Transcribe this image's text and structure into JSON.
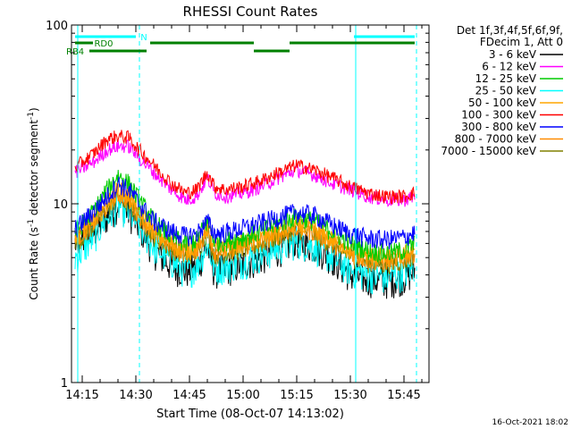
{
  "chart_data": {
    "type": "line",
    "title": "RHESSI Count Rates",
    "xlabel": "Start Time (08-Oct-07 14:13:02)",
    "ylabel_main": "Count Rate (s",
    "ylabel_sup": "-1",
    "ylabel_rest": " detector segment",
    "ylabel_sup2": "-1",
    "ylabel_end": ")",
    "y_scale": "log",
    "ylim": [
      1,
      100
    ],
    "y_ticks": [
      {
        "value": 1,
        "label": "1"
      },
      {
        "value": 10,
        "label": "10"
      },
      {
        "value": 100,
        "label": "100"
      }
    ],
    "xlim": [
      "14:12",
      "15:52"
    ],
    "x_ticks": [
      {
        "time": "14:15",
        "label": "14:15"
      },
      {
        "time": "14:30",
        "label": "14:30"
      },
      {
        "time": "14:45",
        "label": "14:45"
      },
      {
        "time": "15:00",
        "label": "15:00"
      },
      {
        "time": "15:15",
        "label": "15:15"
      },
      {
        "time": "15:30",
        "label": "15:30"
      },
      {
        "time": "15:45",
        "label": "15:45"
      }
    ],
    "legend_placement": "outside-right",
    "legend_header": [
      "Det 1f,3f,4f,5f,6f,9f,",
      "FDecim 1, Att 0"
    ],
    "series": [
      {
        "name": "3 - 6 keV",
        "color": "#000000",
        "baseline": 2.5,
        "points": [
          [
            "14:13",
            6.0
          ],
          [
            "14:18",
            6.8
          ],
          [
            "14:22",
            8.5
          ],
          [
            "14:25",
            10.0
          ],
          [
            "14:28",
            9.0
          ],
          [
            "14:31",
            7.5
          ],
          [
            "14:35",
            5.5
          ],
          [
            "14:40",
            4.5
          ],
          [
            "14:44",
            4.2
          ],
          [
            "14:47",
            4.4
          ],
          [
            "14:50",
            5.8
          ],
          [
            "14:52",
            4.2
          ],
          [
            "14:55",
            4.3
          ],
          [
            "15:00",
            4.6
          ],
          [
            "15:05",
            5.0
          ],
          [
            "15:10",
            5.6
          ],
          [
            "15:15",
            6.2
          ],
          [
            "15:20",
            5.8
          ],
          [
            "15:25",
            5.0
          ],
          [
            "15:30",
            4.0
          ],
          [
            "15:35",
            3.8
          ],
          [
            "15:40",
            3.7
          ],
          [
            "15:45",
            3.9
          ],
          [
            "15:48",
            4.2
          ]
        ]
      },
      {
        "name": "6 - 12 keV",
        "color": "#ff00ff",
        "baseline": 7.0,
        "points": [
          [
            "14:13",
            15.0
          ],
          [
            "14:18",
            17.0
          ],
          [
            "14:22",
            20.0
          ],
          [
            "14:25",
            21.0
          ],
          [
            "14:28",
            21.0
          ],
          [
            "14:31",
            18.0
          ],
          [
            "14:35",
            15.0
          ],
          [
            "14:40",
            12.0
          ],
          [
            "14:44",
            10.5
          ],
          [
            "14:47",
            11.0
          ],
          [
            "14:50",
            14.0
          ],
          [
            "14:52",
            11.5
          ],
          [
            "14:55",
            11.0
          ],
          [
            "15:00",
            11.5
          ],
          [
            "15:05",
            12.5
          ],
          [
            "15:10",
            14.0
          ],
          [
            "15:15",
            15.5
          ],
          [
            "15:20",
            14.5
          ],
          [
            "15:25",
            13.0
          ],
          [
            "15:30",
            12.0
          ],
          [
            "15:35",
            11.0
          ],
          [
            "15:40",
            10.5
          ],
          [
            "15:45",
            10.5
          ],
          [
            "15:48",
            11.0
          ]
        ]
      },
      {
        "name": "12 - 25 keV",
        "color": "#00cc00",
        "baseline": 5.0,
        "points": [
          [
            "14:13",
            7.0
          ],
          [
            "14:18",
            9.0
          ],
          [
            "14:22",
            12.0
          ],
          [
            "14:25",
            14.5
          ],
          [
            "14:28",
            13.0
          ],
          [
            "14:31",
            10.5
          ],
          [
            "14:35",
            8.0
          ],
          [
            "14:40",
            6.5
          ],
          [
            "14:44",
            6.0
          ],
          [
            "14:47",
            6.3
          ],
          [
            "14:50",
            8.0
          ],
          [
            "14:52",
            6.2
          ],
          [
            "14:55",
            6.2
          ],
          [
            "15:00",
            6.5
          ],
          [
            "15:05",
            7.0
          ],
          [
            "15:10",
            7.8
          ],
          [
            "15:15",
            8.5
          ],
          [
            "15:20",
            8.0
          ],
          [
            "15:25",
            7.0
          ],
          [
            "15:30",
            6.0
          ],
          [
            "15:35",
            5.5
          ],
          [
            "15:40",
            5.3
          ],
          [
            "15:45",
            5.5
          ],
          [
            "15:48",
            6.0
          ]
        ]
      },
      {
        "name": "25 - 50 keV",
        "color": "#00ffff",
        "baseline": 3.0,
        "points": [
          [
            "14:13",
            5.0
          ],
          [
            "14:18",
            6.5
          ],
          [
            "14:22",
            8.5
          ],
          [
            "14:25",
            9.8
          ],
          [
            "14:28",
            9.0
          ],
          [
            "14:31",
            7.5
          ],
          [
            "14:35",
            5.8
          ],
          [
            "14:40",
            4.8
          ],
          [
            "14:44",
            4.2
          ],
          [
            "14:47",
            4.5
          ],
          [
            "14:50",
            6.0
          ],
          [
            "14:52",
            4.4
          ],
          [
            "14:55",
            4.5
          ],
          [
            "15:00",
            4.8
          ],
          [
            "15:05",
            5.2
          ],
          [
            "15:10",
            5.7
          ],
          [
            "15:15",
            6.2
          ],
          [
            "15:20",
            5.8
          ],
          [
            "15:25",
            5.0
          ],
          [
            "15:30",
            4.3
          ],
          [
            "15:35",
            4.0
          ],
          [
            "15:40",
            3.9
          ],
          [
            "15:45",
            4.1
          ],
          [
            "15:48",
            4.5
          ]
        ]
      },
      {
        "name": "50 - 100 keV",
        "color": "#ffa500",
        "baseline": 5.0,
        "points": [
          [
            "14:13",
            6.5
          ],
          [
            "14:18",
            8.0
          ],
          [
            "14:22",
            10.0
          ],
          [
            "14:25",
            12.0
          ],
          [
            "14:28",
            11.0
          ],
          [
            "14:31",
            9.0
          ],
          [
            "14:35",
            7.0
          ],
          [
            "14:40",
            6.0
          ],
          [
            "14:44",
            5.5
          ],
          [
            "14:47",
            5.8
          ],
          [
            "14:50",
            7.5
          ],
          [
            "14:52",
            5.6
          ],
          [
            "14:55",
            5.7
          ],
          [
            "15:00",
            6.0
          ],
          [
            "15:05",
            6.4
          ],
          [
            "15:10",
            7.0
          ],
          [
            "15:15",
            7.6
          ],
          [
            "15:20",
            7.2
          ],
          [
            "15:25",
            6.3
          ],
          [
            "15:30",
            5.5
          ],
          [
            "15:35",
            5.1
          ],
          [
            "15:40",
            5.0
          ],
          [
            "15:45",
            5.2
          ],
          [
            "15:48",
            5.6
          ]
        ]
      },
      {
        "name": "100 - 300 keV",
        "color": "#ff0000",
        "baseline": 7.0,
        "points": [
          [
            "14:13",
            16.0
          ],
          [
            "14:18",
            19.0
          ],
          [
            "14:22",
            23.0
          ],
          [
            "14:25",
            24.0
          ],
          [
            "14:28",
            23.5
          ],
          [
            "14:31",
            20.0
          ],
          [
            "14:35",
            16.5
          ],
          [
            "14:40",
            13.0
          ],
          [
            "14:44",
            11.5
          ],
          [
            "14:47",
            12.0
          ],
          [
            "14:50",
            15.0
          ],
          [
            "14:52",
            12.5
          ],
          [
            "14:55",
            12.0
          ],
          [
            "15:00",
            12.5
          ],
          [
            "15:05",
            13.5
          ],
          [
            "15:10",
            15.0
          ],
          [
            "15:15",
            16.5
          ],
          [
            "15:20",
            15.5
          ],
          [
            "15:25",
            14.0
          ],
          [
            "15:30",
            12.5
          ],
          [
            "15:35",
            11.5
          ],
          [
            "15:40",
            11.0
          ],
          [
            "15:45",
            11.0
          ],
          [
            "15:48",
            11.5
          ]
        ]
      },
      {
        "name": "300 - 800 keV",
        "color": "#0000ff",
        "baseline": 5.0,
        "points": [
          [
            "14:13",
            7.2
          ],
          [
            "14:18",
            9.0
          ],
          [
            "14:22",
            11.0
          ],
          [
            "14:25",
            13.0
          ],
          [
            "14:28",
            12.0
          ],
          [
            "14:31",
            10.0
          ],
          [
            "14:35",
            8.0
          ],
          [
            "14:40",
            7.0
          ],
          [
            "14:44",
            6.6
          ],
          [
            "14:47",
            6.8
          ],
          [
            "14:50",
            8.0
          ],
          [
            "14:52",
            6.8
          ],
          [
            "14:55",
            6.9
          ],
          [
            "15:00",
            7.3
          ],
          [
            "15:05",
            7.8
          ],
          [
            "15:10",
            8.4
          ],
          [
            "15:15",
            9.0
          ],
          [
            "15:20",
            8.6
          ],
          [
            "15:25",
            7.6
          ],
          [
            "15:30",
            6.8
          ],
          [
            "15:35",
            6.4
          ],
          [
            "15:40",
            6.3
          ],
          [
            "15:45",
            6.5
          ],
          [
            "15:48",
            6.9
          ]
        ]
      },
      {
        "name": "800 - 7000 keV",
        "color": "#ff8c00",
        "baseline": 5.0,
        "points": [
          [
            "14:13",
            6.3
          ],
          [
            "14:18",
            7.8
          ],
          [
            "14:22",
            9.8
          ],
          [
            "14:25",
            11.5
          ],
          [
            "14:28",
            10.5
          ],
          [
            "14:31",
            8.7
          ],
          [
            "14:35",
            6.8
          ],
          [
            "14:40",
            5.8
          ],
          [
            "14:44",
            5.3
          ],
          [
            "14:47",
            5.6
          ],
          [
            "14:50",
            7.2
          ],
          [
            "14:52",
            5.4
          ],
          [
            "14:55",
            5.5
          ],
          [
            "15:00",
            5.8
          ],
          [
            "15:05",
            6.2
          ],
          [
            "15:10",
            6.8
          ],
          [
            "15:15",
            7.4
          ],
          [
            "15:20",
            7.0
          ],
          [
            "15:25",
            6.1
          ],
          [
            "15:30",
            5.3
          ],
          [
            "15:35",
            4.9
          ],
          [
            "15:40",
            4.8
          ],
          [
            "15:45",
            5.0
          ],
          [
            "15:48",
            5.4
          ]
        ]
      },
      {
        "name": "7000 - 15000 keV",
        "color": "#808000",
        "baseline": 5.0,
        "points": [
          [
            "14:13",
            6.0
          ],
          [
            "14:18",
            7.5
          ],
          [
            "14:22",
            9.5
          ],
          [
            "14:25",
            11.0
          ],
          [
            "14:28",
            10.0
          ],
          [
            "14:31",
            8.4
          ],
          [
            "14:35",
            6.6
          ],
          [
            "14:40",
            5.6
          ],
          [
            "14:44",
            5.1
          ],
          [
            "14:47",
            5.4
          ],
          [
            "14:50",
            7.0
          ],
          [
            "14:52",
            5.2
          ],
          [
            "14:55",
            5.3
          ],
          [
            "15:00",
            5.6
          ],
          [
            "15:05",
            6.0
          ],
          [
            "15:10",
            6.6
          ],
          [
            "15:15",
            7.2
          ],
          [
            "15:20",
            6.8
          ],
          [
            "15:25",
            5.9
          ],
          [
            "15:30",
            5.1
          ],
          [
            "15:35",
            4.7
          ],
          [
            "15:40",
            4.6
          ],
          [
            "15:45",
            4.8
          ],
          [
            "15:48",
            5.2
          ]
        ]
      }
    ],
    "vertical_lines": [
      {
        "time": "14:13:45",
        "style": "solid",
        "color": "#00ffff"
      },
      {
        "time": "14:31:00",
        "style": "dashed",
        "color": "#00ffff"
      },
      {
        "time": "15:31:30",
        "style": "solid",
        "color": "#00ffff"
      },
      {
        "time": "15:48:30",
        "style": "dashed",
        "color": "#00ffff"
      }
    ],
    "flag_bars": [
      {
        "label": "N",
        "color": "#00ffff",
        "level": 1,
        "segments": [
          [
            "14:13",
            "14:30"
          ],
          [
            "15:31",
            "15:48"
          ]
        ]
      },
      {
        "label": "RD0",
        "color": "#008000",
        "level": 2,
        "segments": [
          [
            "14:13",
            "14:18"
          ],
          [
            "14:34",
            "15:03"
          ],
          [
            "15:13",
            "15:48"
          ]
        ]
      },
      {
        "label": "RB4",
        "color": "#008000",
        "level": 3,
        "segments": [
          [
            "14:17",
            "14:33"
          ],
          [
            "15:03",
            "15:13"
          ]
        ]
      }
    ],
    "footer": "16-Oct-2021 18:02"
  }
}
